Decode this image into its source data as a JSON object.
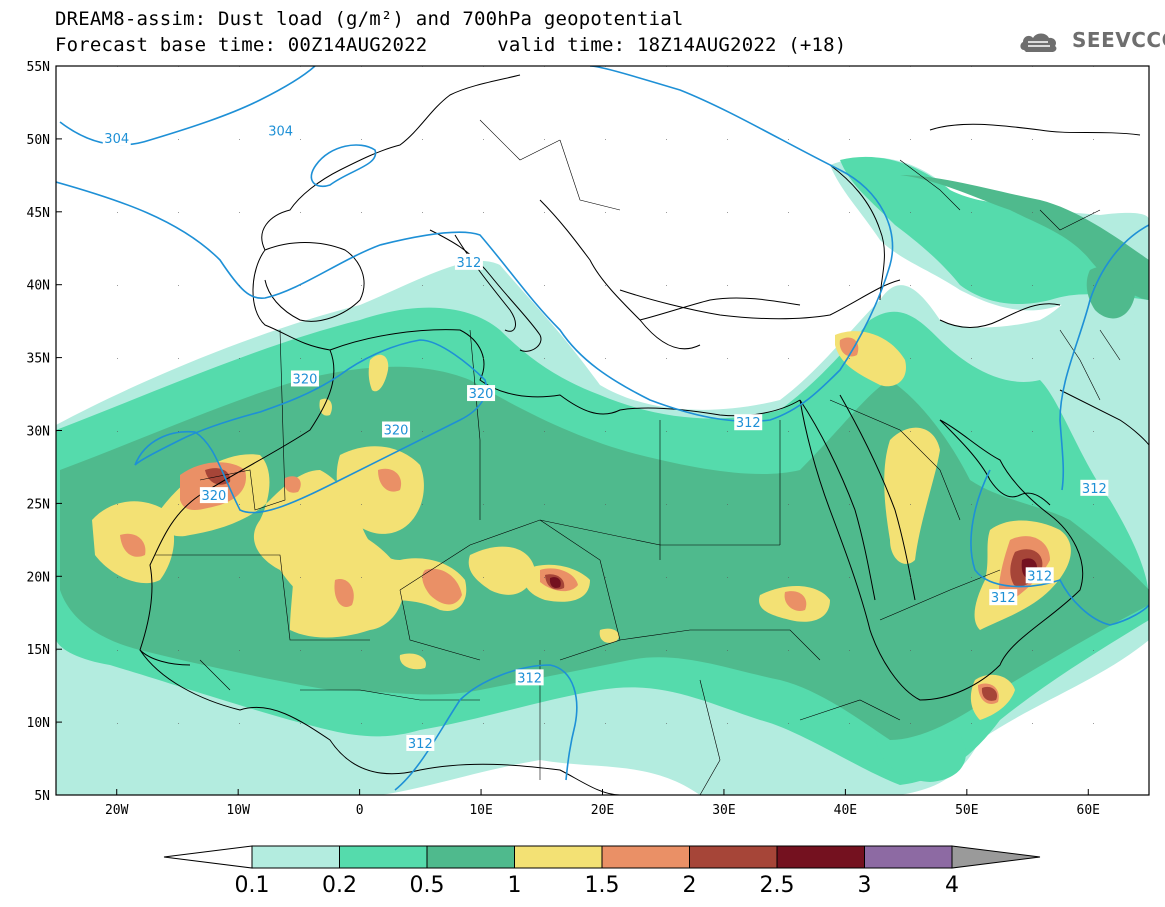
{
  "title": {
    "line1": "DREAM8-assim: Dust load (g/m²) and 700hPa geopotential",
    "line2": "Forecast base time: 00Z14AUG2022      valid time: 18Z14AUG2022 (+18)"
  },
  "logo": {
    "text": "SEEVCCC",
    "icon": "cloud-logo-icon"
  },
  "axes": {
    "lat_labels": [
      "55N",
      "50N",
      "45N",
      "40N",
      "35N",
      "30N",
      "25N",
      "20N",
      "15N",
      "10N",
      "5N"
    ],
    "lon_labels": [
      "20W",
      "10W",
      "0",
      "10E",
      "20E",
      "30E",
      "40E",
      "50E",
      "60E"
    ],
    "lat_range": [
      5,
      55
    ],
    "lon_range": [
      -25,
      65
    ]
  },
  "contours": {
    "color": "#1e90d6",
    "labels": [
      {
        "text": "304",
        "lon": -20,
        "lat": 50
      },
      {
        "text": "304",
        "lon": -6.5,
        "lat": 50.5
      },
      {
        "text": "312",
        "lon": 9,
        "lat": 41.5
      },
      {
        "text": "320",
        "lon": -4.5,
        "lat": 33.5
      },
      {
        "text": "320",
        "lon": 10,
        "lat": 32.5
      },
      {
        "text": "320",
        "lon": 3,
        "lat": 30
      },
      {
        "text": "320",
        "lon": -12,
        "lat": 25.5
      },
      {
        "text": "312",
        "lon": 32,
        "lat": 30.5
      },
      {
        "text": "312",
        "lon": 60.5,
        "lat": 26
      },
      {
        "text": "312",
        "lon": 56,
        "lat": 20
      },
      {
        "text": "312",
        "lon": 53,
        "lat": 18.5
      },
      {
        "text": "312",
        "lon": 14,
        "lat": 13
      },
      {
        "text": "312",
        "lon": 5,
        "lat": 8.5
      }
    ]
  },
  "legend": {
    "levels": [
      "0.1",
      "0.2",
      "0.5",
      "1",
      "1.5",
      "2",
      "2.5",
      "3",
      "4"
    ],
    "colors": [
      "#ffffff",
      "#b3ecdf",
      "#55dbac",
      "#4fba8d",
      "#f3e174",
      "#ea9066",
      "#a64538",
      "#74111f",
      "#8d6aa3",
      "#9a9a9a"
    ]
  }
}
